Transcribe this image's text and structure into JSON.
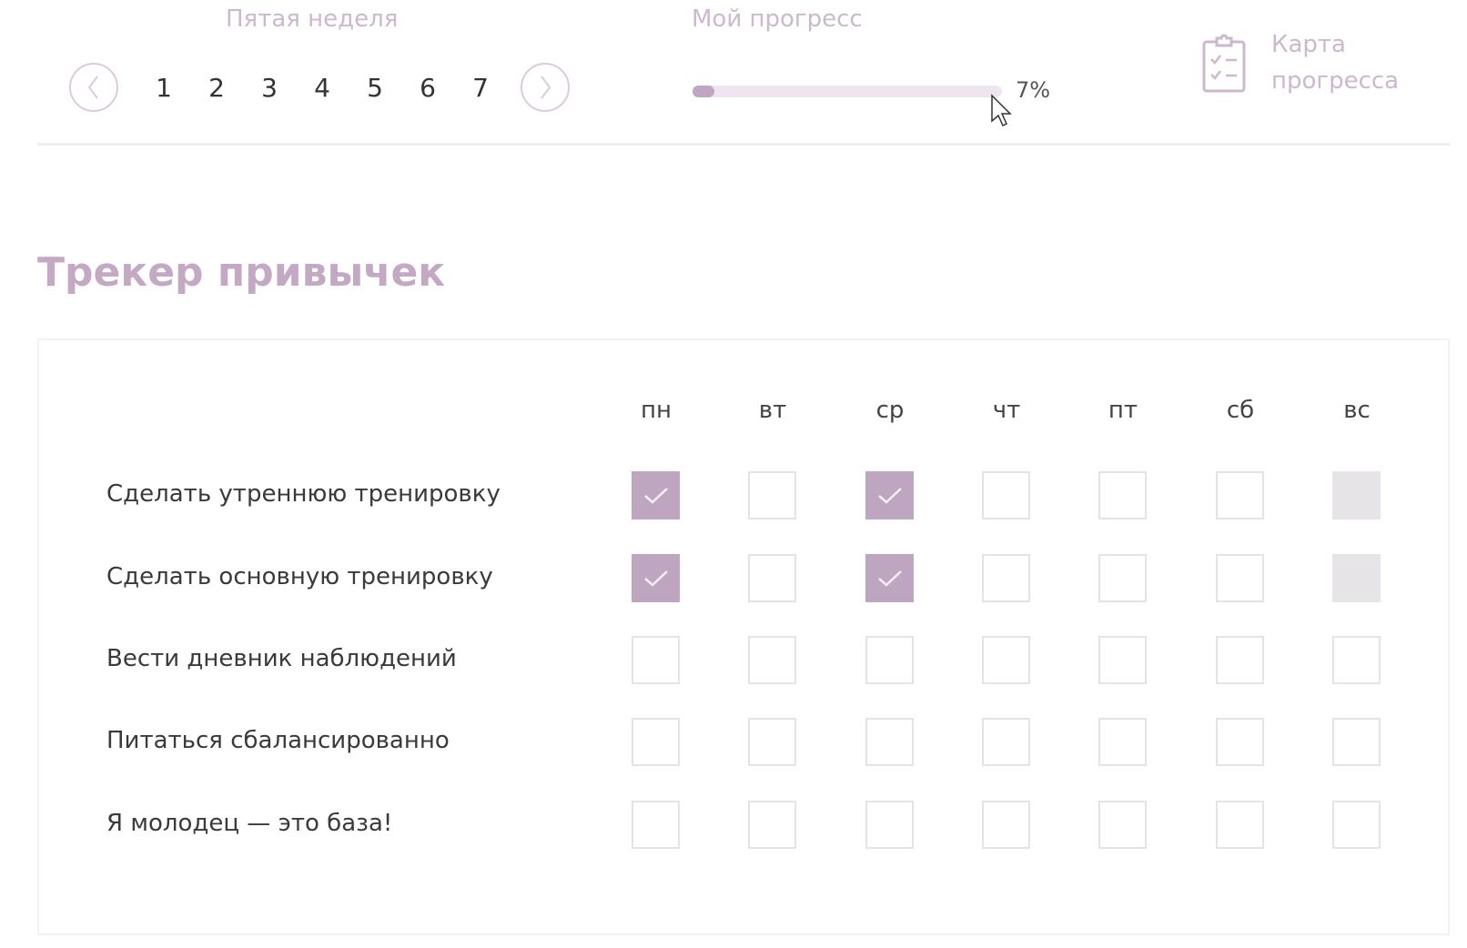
{
  "week_nav": {
    "title": "Пятая неделя",
    "prev_icon": "chevron-left-icon",
    "next_icon": "chevron-right-icon",
    "days": [
      "1",
      "2",
      "3",
      "4",
      "5",
      "6",
      "7"
    ]
  },
  "progress": {
    "title": "Мой прогресс",
    "percent": 7,
    "label": "7%"
  },
  "progress_map": {
    "icon": "clipboard-checklist-icon",
    "label_line1": "Карта",
    "label_line2": "прогресса"
  },
  "tracker": {
    "title": "Трекер привычек",
    "days": [
      "пн",
      "вт",
      "ср",
      "чт",
      "пт",
      "сб",
      "вс"
    ],
    "habits": [
      {
        "label": "Сделать утреннюю тренировку",
        "states": [
          "checked",
          "empty",
          "checked",
          "empty",
          "empty",
          "empty",
          "disabled"
        ]
      },
      {
        "label": "Сделать основную тренировку",
        "states": [
          "checked",
          "empty",
          "checked",
          "empty",
          "empty",
          "empty",
          "disabled"
        ]
      },
      {
        "label": "Вести дневник наблюдений",
        "states": [
          "empty",
          "empty",
          "empty",
          "empty",
          "empty",
          "empty",
          "empty"
        ]
      },
      {
        "label": "Питаться сбалансированно",
        "states": [
          "empty",
          "empty",
          "empty",
          "empty",
          "empty",
          "empty",
          "empty"
        ]
      },
      {
        "label": "Я молодец — это база!",
        "states": [
          "empty",
          "empty",
          "empty",
          "empty",
          "empty",
          "empty",
          "empty"
        ]
      }
    ]
  },
  "colors": {
    "accent": "#bfa6c0",
    "accent_light": "#eee5f0",
    "disabled": "#e6e4e6"
  }
}
